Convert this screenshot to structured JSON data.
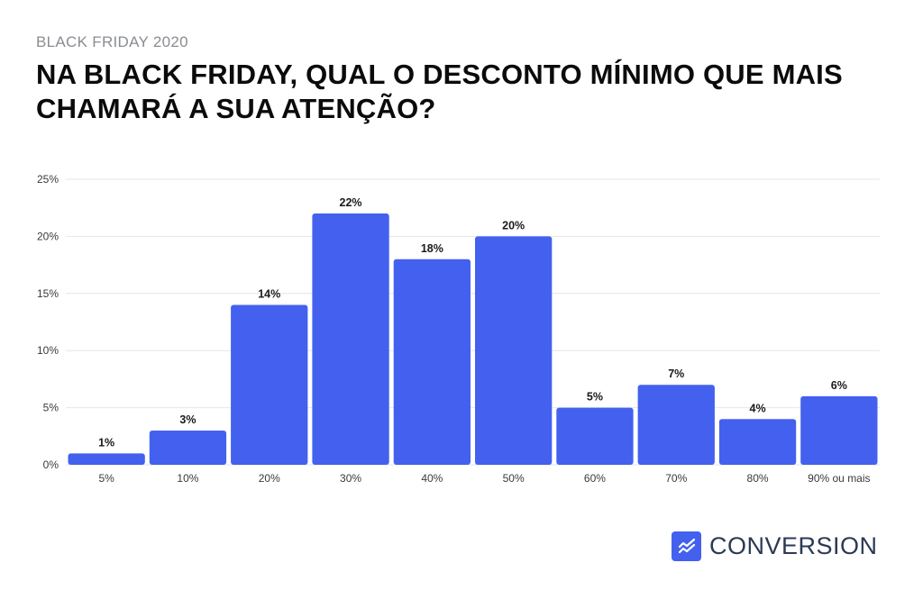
{
  "header": {
    "kicker": "BLACK FRIDAY 2020",
    "title": "NA BLACK FRIDAY, QUAL O DESCONTO MÍNIMO QUE MAIS CHAMARÁ A SUA ATENÇÃO?"
  },
  "brand": {
    "name": "CONVERSION",
    "color": "#4361ee"
  },
  "chart_data": {
    "type": "bar",
    "title": "NA BLACK FRIDAY, QUAL O DESCONTO MÍNIMO QUE MAIS CHAMARÁ A SUA ATENÇÃO?",
    "xlabel": "",
    "ylabel": "",
    "categories": [
      "5%",
      "10%",
      "20%",
      "30%",
      "40%",
      "50%",
      "60%",
      "70%",
      "80%",
      "90% ou mais"
    ],
    "values": [
      1,
      3,
      14,
      22,
      18,
      20,
      5,
      7,
      4,
      6
    ],
    "value_labels": [
      "1%",
      "3%",
      "14%",
      "22%",
      "18%",
      "20%",
      "5%",
      "7%",
      "4%",
      "6%"
    ],
    "ylim": [
      0,
      25
    ],
    "yticks": [
      0,
      5,
      10,
      15,
      20,
      25
    ],
    "ytick_labels": [
      "0%",
      "5%",
      "10%",
      "15%",
      "20%",
      "25%"
    ],
    "grid": true,
    "bar_color": "#4361ee",
    "grid_color": "#e6e6e6"
  }
}
